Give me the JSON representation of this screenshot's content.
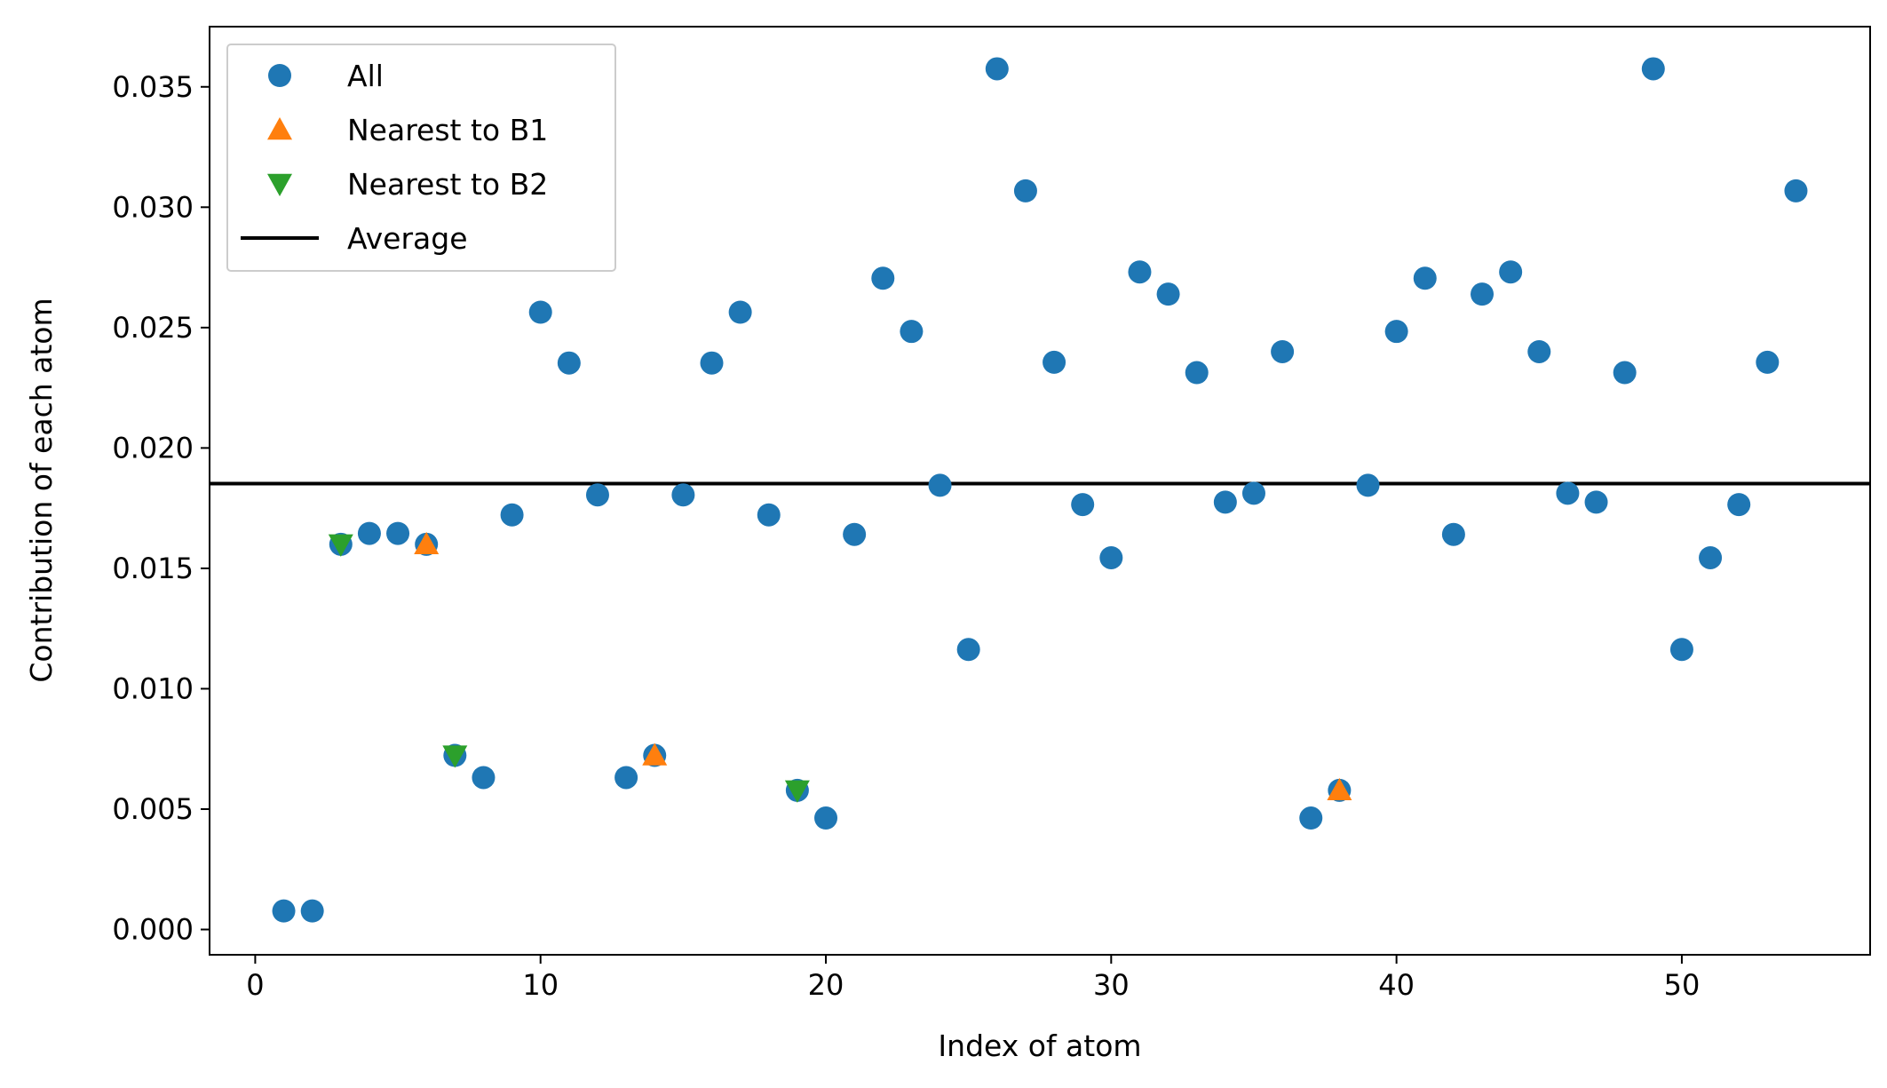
{
  "chart_data": {
    "type": "scatter",
    "xlabel": "Index of atom",
    "ylabel": "Contribution of each atom",
    "xlim": [
      -1.6,
      56.6
    ],
    "ylim": [
      -0.00105,
      0.0375
    ],
    "x_ticks": [
      0,
      10,
      20,
      30,
      40,
      50
    ],
    "x_tick_labels": [
      "0",
      "10",
      "20",
      "30",
      "40",
      "50"
    ],
    "y_ticks": [
      0.0,
      0.005,
      0.01,
      0.015,
      0.02,
      0.025,
      0.03,
      0.035
    ],
    "y_tick_labels": [
      "0.000",
      "0.005",
      "0.010",
      "0.015",
      "0.020",
      "0.025",
      "0.030",
      "0.035"
    ],
    "grid": false,
    "legend_position": "upper-left",
    "series": [
      {
        "name": "All",
        "marker": "circle",
        "color": "#1f77b4",
        "points": [
          [
            1,
            0.00077
          ],
          [
            2,
            0.00077
          ],
          [
            3,
            0.016
          ],
          [
            4,
            0.01645
          ],
          [
            5,
            0.01645
          ],
          [
            6,
            0.016
          ],
          [
            7,
            0.00723
          ],
          [
            8,
            0.00631
          ],
          [
            9,
            0.01722
          ],
          [
            10,
            0.02564
          ],
          [
            11,
            0.02353
          ],
          [
            12,
            0.01805
          ],
          [
            13,
            0.00631
          ],
          [
            14,
            0.00723
          ],
          [
            15,
            0.01805
          ],
          [
            16,
            0.02353
          ],
          [
            17,
            0.02564
          ],
          [
            18,
            0.01722
          ],
          [
            19,
            0.00578
          ],
          [
            20,
            0.00463
          ],
          [
            21,
            0.01641
          ],
          [
            22,
            0.02705
          ],
          [
            23,
            0.02484
          ],
          [
            24,
            0.01845
          ],
          [
            25,
            0.01163
          ],
          [
            26,
            0.03575
          ],
          [
            27,
            0.03068
          ],
          [
            28,
            0.02356
          ],
          [
            29,
            0.01765
          ],
          [
            30,
            0.01544
          ],
          [
            31,
            0.02731
          ],
          [
            32,
            0.02639
          ],
          [
            33,
            0.02313
          ],
          [
            34,
            0.01775
          ],
          [
            35,
            0.01812
          ],
          [
            36,
            0.024
          ],
          [
            37,
            0.00463
          ],
          [
            38,
            0.00578
          ],
          [
            39,
            0.01845
          ],
          [
            40,
            0.02484
          ],
          [
            41,
            0.02705
          ],
          [
            42,
            0.01641
          ],
          [
            43,
            0.02639
          ],
          [
            44,
            0.02731
          ],
          [
            45,
            0.024
          ],
          [
            46,
            0.01812
          ],
          [
            47,
            0.01775
          ],
          [
            48,
            0.02313
          ],
          [
            49,
            0.03575
          ],
          [
            50,
            0.01163
          ],
          [
            51,
            0.01544
          ],
          [
            52,
            0.01765
          ],
          [
            53,
            0.02356
          ],
          [
            54,
            0.03068
          ]
        ]
      },
      {
        "name": "Nearest to B1",
        "marker": "triangle-up",
        "color": "#ff7f0e",
        "points": [
          [
            6,
            0.016
          ],
          [
            14,
            0.00723
          ],
          [
            38,
            0.00578
          ]
        ]
      },
      {
        "name": "Nearest to B2",
        "marker": "triangle-down",
        "color": "#2ca02c",
        "points": [
          [
            3,
            0.016
          ],
          [
            7,
            0.00723
          ],
          [
            19,
            0.00578
          ]
        ]
      }
    ],
    "reference_lines": [
      {
        "name": "Average",
        "orientation": "horizontal",
        "y": 0.01852,
        "color": "#000000"
      }
    ]
  }
}
